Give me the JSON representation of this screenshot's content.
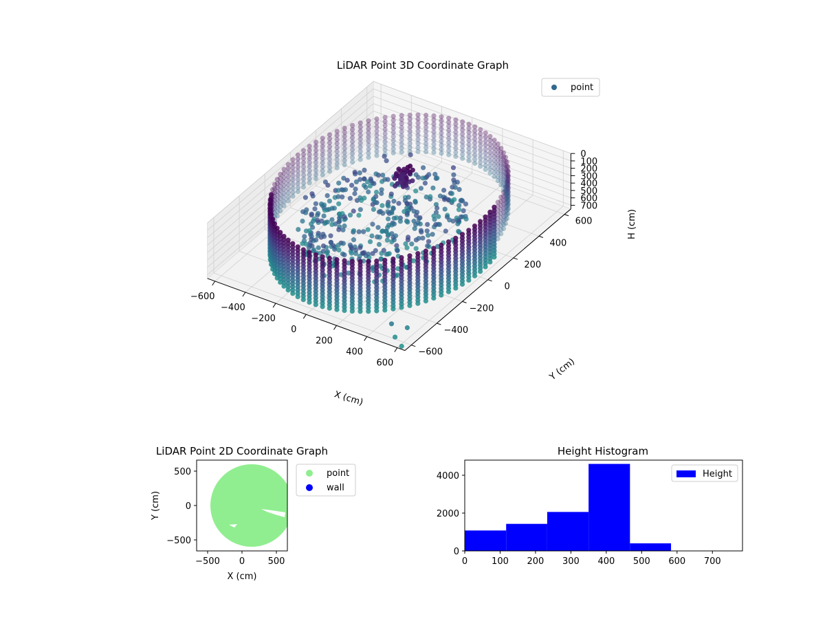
{
  "chart_data": [
    {
      "type": "scatter3d",
      "title": "LiDAR Point 3D Coordinate Graph",
      "xlabel": "X (cm)",
      "ylabel": "Y (cm)",
      "zlabel": "H (cm)",
      "xticks": [
        "−600",
        "−400",
        "−200",
        "0",
        "200",
        "400",
        "600"
      ],
      "yticks": [
        "−600",
        "−400",
        "−200",
        "0",
        "200",
        "400",
        "600"
      ],
      "zticks": [
        "0",
        "100",
        "200",
        "300",
        "400",
        "500",
        "600",
        "700"
      ],
      "xlim": [
        -650,
        650
      ],
      "ylim": [
        -650,
        650
      ],
      "zlim": [
        0,
        750
      ],
      "z_inverted": true,
      "legend": {
        "labels": [
          "point"
        ],
        "placement": "top-right"
      },
      "colormap": "viridis",
      "series_color": "#31688e",
      "shape": {
        "ring_radius": 600,
        "ring_height_range": [
          0,
          700
        ],
        "interior": "scattered points at heights 300–700"
      },
      "grid": true
    },
    {
      "type": "scatter",
      "title": "LiDAR Point 2D Coordinate Graph",
      "xlabel": "X (cm)",
      "ylabel": "Y (cm)",
      "xticks": [
        "−500",
        "0",
        "500"
      ],
      "yticks": [
        "−500",
        "0",
        "500"
      ],
      "xlim": [
        -660,
        660
      ],
      "ylim": [
        -660,
        660
      ],
      "series": [
        {
          "name": "point",
          "color": "#90ee90",
          "shape": "filled disc, radius 600 centred at (150, 0)"
        },
        {
          "name": "wall",
          "color": "#0000ff"
        }
      ],
      "legend": {
        "placement": "outside-right"
      }
    },
    {
      "type": "bar",
      "title": "Height Histogram",
      "series": [
        {
          "name": "Height",
          "color": "#0000ff",
          "bins": [
            {
              "x0": 0,
              "x1": 117,
              "count": 1080
            },
            {
              "x0": 117,
              "x1": 233,
              "count": 1430
            },
            {
              "x0": 233,
              "x1": 350,
              "count": 2060
            },
            {
              "x0": 350,
              "x1": 467,
              "count": 4600
            },
            {
              "x0": 467,
              "x1": 583,
              "count": 400
            }
          ]
        }
      ],
      "xticks": [
        "0",
        "100",
        "200",
        "300",
        "400",
        "500",
        "600",
        "700"
      ],
      "yticks": [
        "0",
        "2000",
        "4000"
      ],
      "xlim": [
        0,
        785
      ],
      "ylim": [
        0,
        4800
      ],
      "legend": {
        "placement": "top-right"
      }
    }
  ]
}
